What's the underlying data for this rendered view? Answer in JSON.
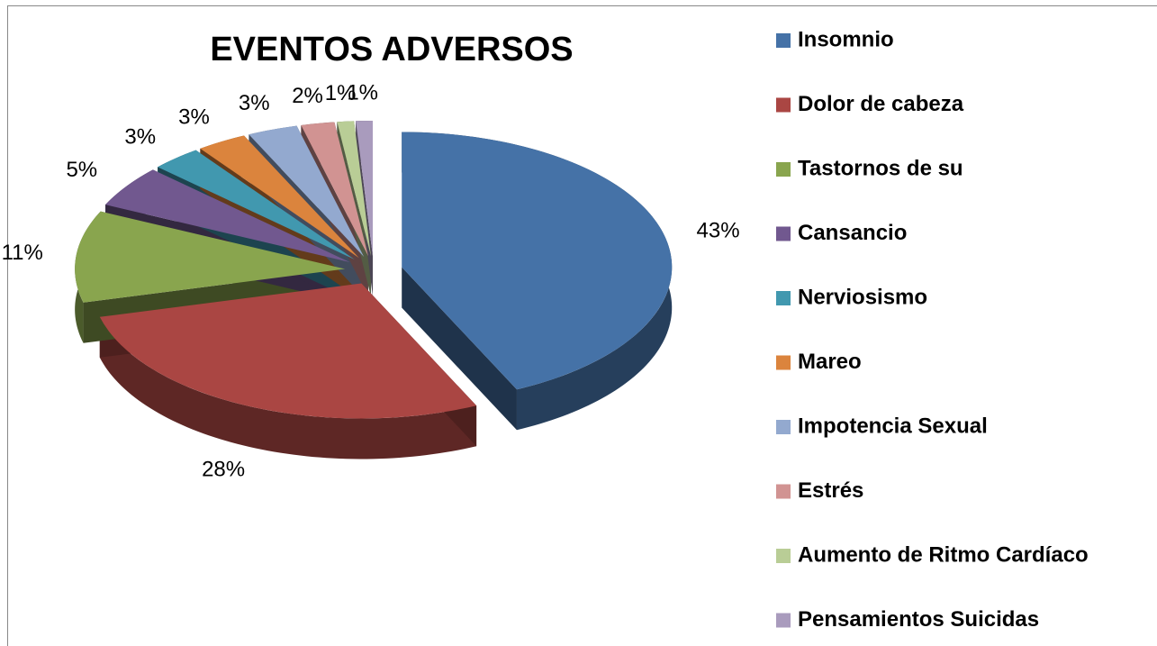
{
  "chart_data": {
    "type": "pie",
    "title": "EVENTOS ADVERSOS",
    "categories": [
      "Insomnio",
      "Dolor de cabeza",
      "Tastornos de su",
      "Cansancio",
      "Nerviosismo",
      "Mareo",
      "Impotencia Sexual",
      "Estrés",
      "Aumento de Ritmo Cardíaco",
      "Pensamientos Suicidas"
    ],
    "values": [
      43,
      28,
      11,
      5,
      3,
      3,
      3,
      2,
      1,
      1
    ],
    "value_labels": [
      "43%",
      "28%",
      "11%",
      "5%",
      "3%",
      "3%",
      "3%",
      "2%",
      "1%",
      "1%"
    ],
    "colors": [
      "#4572a7",
      "#aa4643",
      "#89a54e",
      "#71588f",
      "#4198af",
      "#db843d",
      "#93a9cf",
      "#d19392",
      "#b9cd96",
      "#a99bbd"
    ],
    "legend": "right"
  }
}
